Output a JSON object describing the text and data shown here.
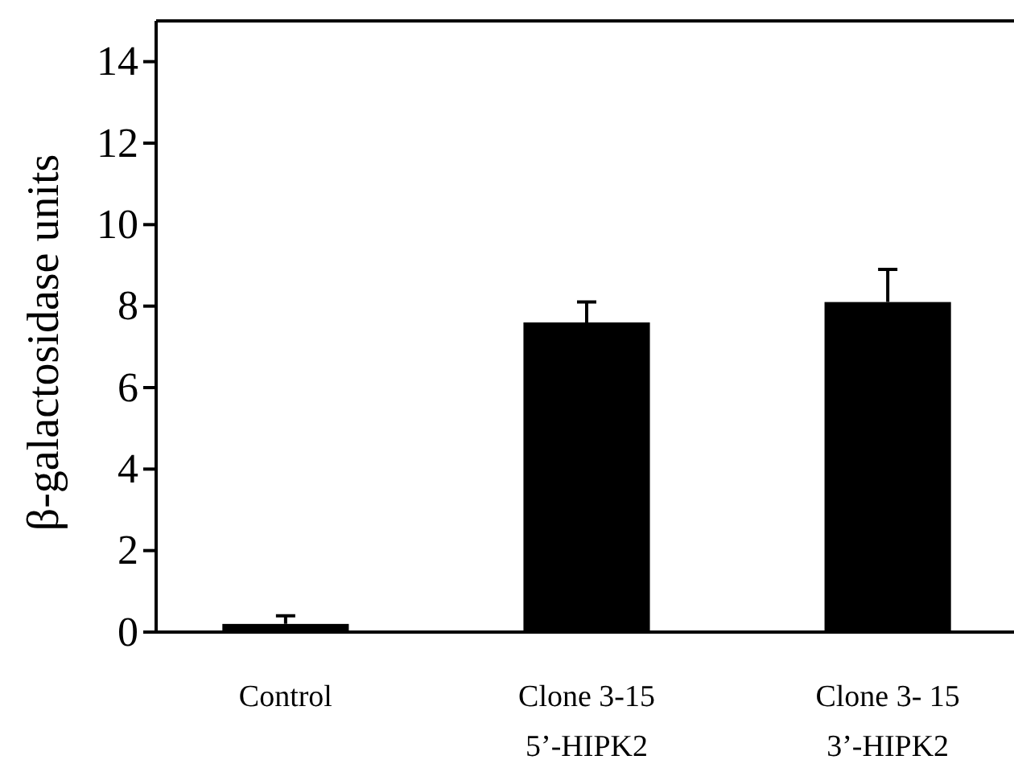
{
  "chart_data": {
    "type": "bar",
    "ylabel": "β-galactosidase units",
    "categories": [
      "Control",
      "Clone 3-15\n5’-HIPK2",
      "Clone 3- 15\n3’-HIPK2"
    ],
    "values": [
      0.2,
      7.6,
      8.1
    ],
    "errors": [
      0.2,
      0.5,
      0.8
    ],
    "color": "#000000",
    "ylim": [
      0,
      15
    ],
    "yticks": [
      0,
      2,
      4,
      6,
      8,
      10,
      12,
      14
    ],
    "grid": false
  }
}
